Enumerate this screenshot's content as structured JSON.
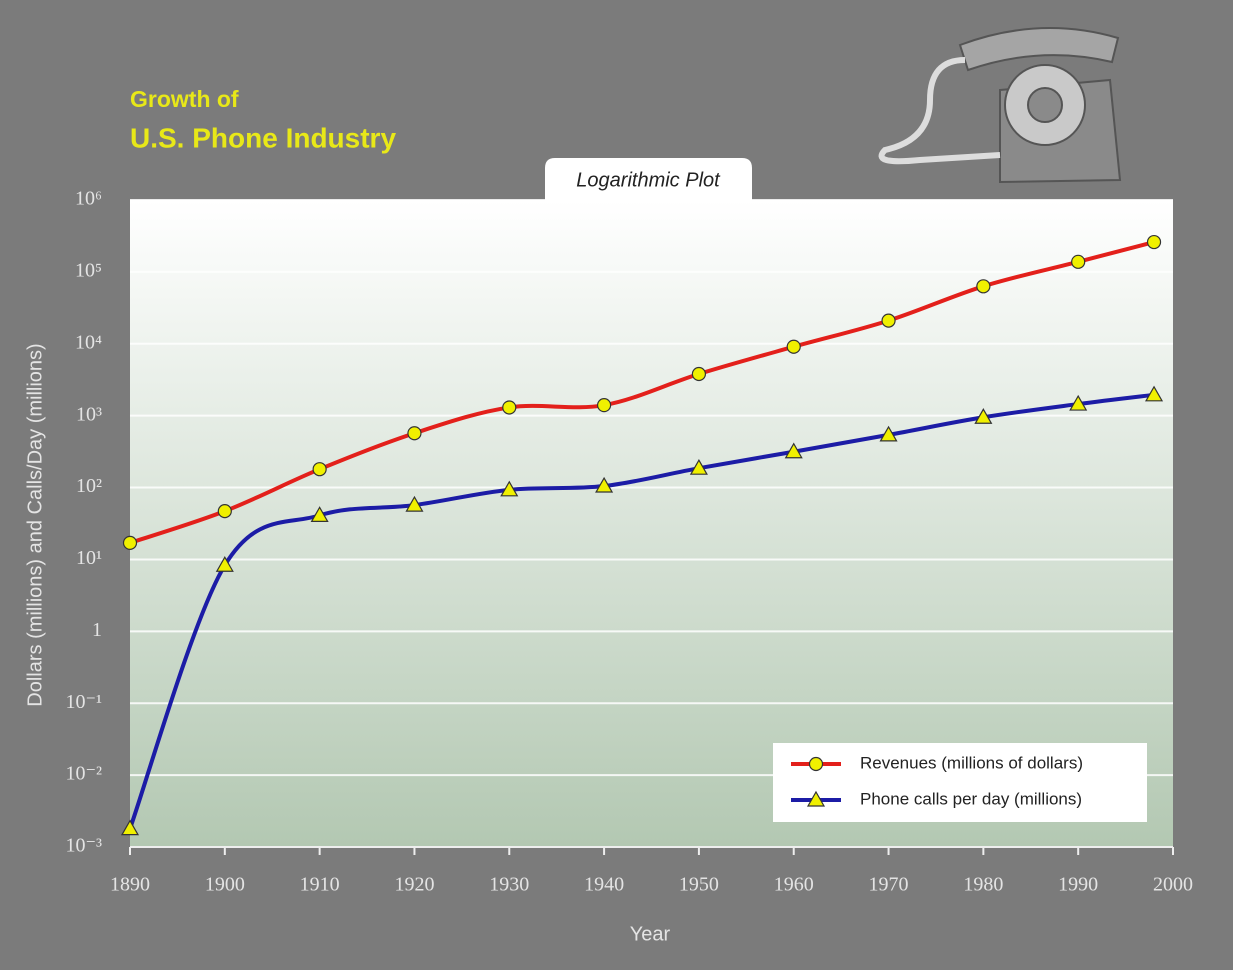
{
  "chart_data": {
    "type": "line",
    "title": "Growth of",
    "subtitle": "U.S. Phone Industry",
    "plot_label": "Logarithmic Plot",
    "x_label": "Year",
    "y_label": "Dollars (millions) and Calls/Day (millions)",
    "x": [
      1890,
      1900,
      1910,
      1920,
      1930,
      1940,
      1950,
      1960,
      1970,
      1980,
      1990,
      1998
    ],
    "series": [
      {
        "name": "Revenues (millions of dollars)",
        "color": "#e3201b",
        "marker": "circle",
        "values": [
          17,
          47,
          180,
          570,
          1300,
          1400,
          3800,
          9100,
          21000,
          63000,
          138000,
          260000
        ]
      },
      {
        "name": "Phone calls per day (millions)",
        "color": "#1c1ca6",
        "marker": "triangle",
        "values": [
          0.0018,
          8.3,
          41,
          57,
          93,
          105,
          186,
          315,
          540,
          950,
          1450,
          1950
        ]
      }
    ],
    "xlim": [
      1890,
      2000
    ],
    "xticks": [
      1890,
      1900,
      1910,
      1920,
      1930,
      1940,
      1950,
      1960,
      1970,
      1980,
      1990,
      2000
    ],
    "ylim": [
      0.001,
      1000000
    ],
    "yticks": [
      {
        "value": 0.001,
        "label": "10⁻³"
      },
      {
        "value": 0.01,
        "label": "10⁻²"
      },
      {
        "value": 0.1,
        "label": "10⁻¹"
      },
      1,
      {
        "value": 10,
        "label": "10¹"
      },
      {
        "value": 100,
        "label": "10²"
      },
      {
        "value": 1000,
        "label": "10³"
      },
      {
        "value": 10000,
        "label": "10⁴"
      },
      {
        "value": 100000,
        "label": "10⁵"
      },
      {
        "value": 1000000,
        "label": "10⁶"
      }
    ],
    "y_scale": "log",
    "grid": true,
    "legend": "lower-right"
  }
}
